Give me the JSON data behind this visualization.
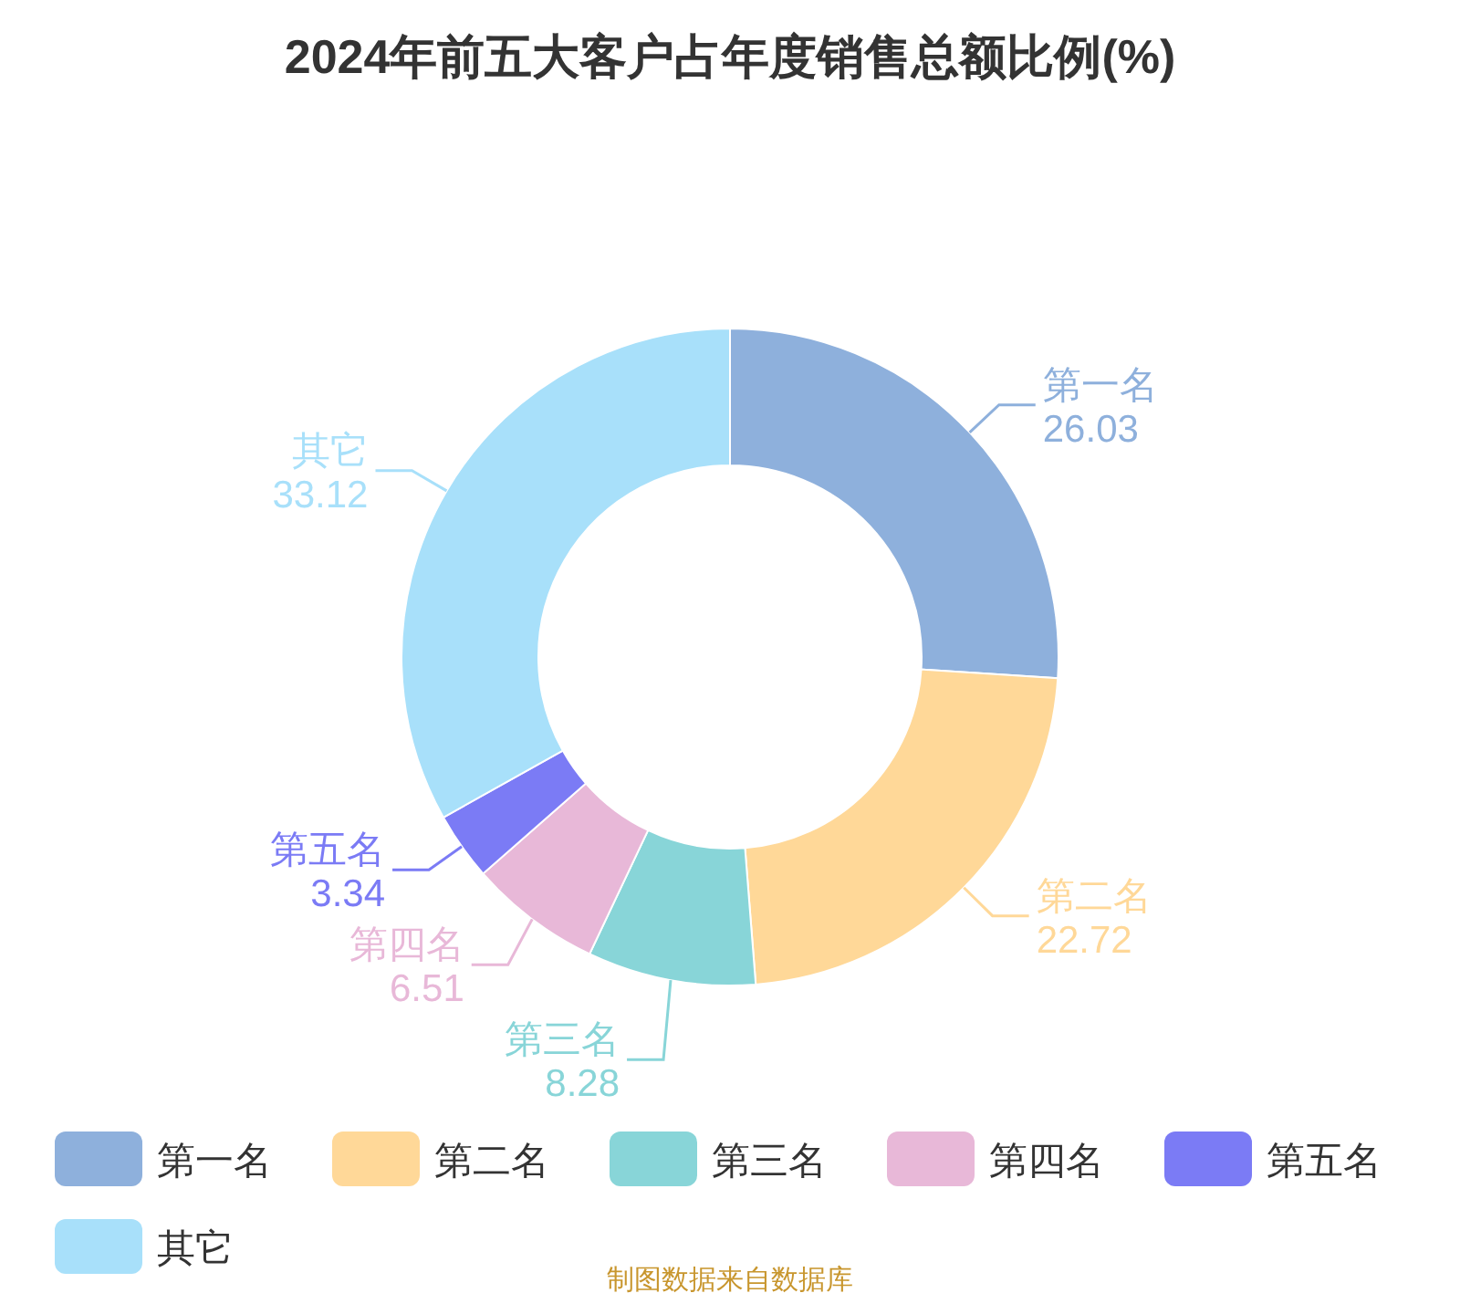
{
  "chart_data": {
    "type": "donut",
    "title": "2024年前五大客户占年度销售总额比例(%)",
    "categories": [
      "第一名",
      "第二名",
      "第三名",
      "第四名",
      "第五名",
      "其它"
    ],
    "values": [
      26.03,
      22.72,
      8.28,
      6.51,
      3.34,
      33.12
    ],
    "colors": [
      "#8eb0dc",
      "#ffd898",
      "#88d5d8",
      "#e8b8d8",
      "#7b7bf5",
      "#a8e0fa"
    ],
    "data_labels": true,
    "legend": "bottom",
    "annotations": [
      "制图数据来自数据库"
    ]
  }
}
